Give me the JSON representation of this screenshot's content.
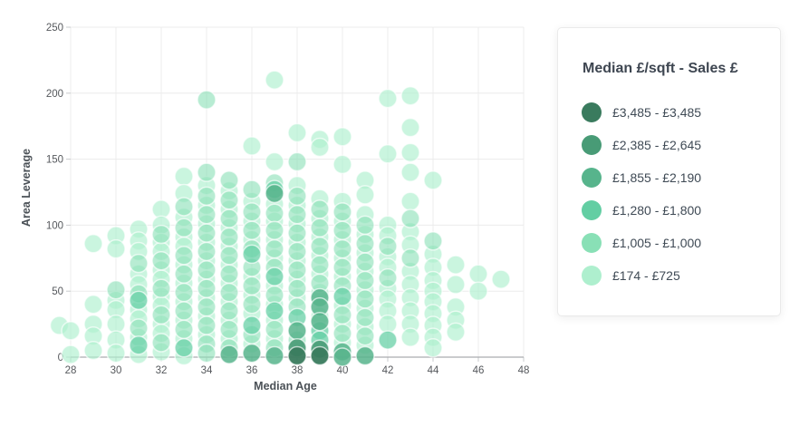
{
  "legend": {
    "title": "Median £/sqft - Sales £",
    "items": [
      {
        "label": "£3,485 - £3,485",
        "color": "#3A7B5E"
      },
      {
        "label": "£2,385 - £2,645",
        "color": "#489B76"
      },
      {
        "label": "£1,855 - £2,190",
        "color": "#57B48C"
      },
      {
        "label": "£1,280 - £1,800",
        "color": "#63CEA3"
      },
      {
        "label": "£1,005 - £1,000",
        "color": "#89E0B6"
      },
      {
        "label": "£174 - £725",
        "color": "#AEEFCE"
      }
    ]
  },
  "chart_data": {
    "type": "scatter",
    "title": "",
    "xlabel": "Median Age",
    "ylabel": "Area Leverage",
    "xlim": [
      28,
      48
    ],
    "ylim": [
      0,
      250
    ],
    "x_ticks": [
      28,
      30,
      32,
      34,
      36,
      38,
      40,
      42,
      44,
      46,
      48
    ],
    "y_ticks": [
      0,
      50,
      100,
      150,
      200,
      250
    ],
    "grid": true,
    "legend_position": "right",
    "legend_title": "Median £/sqft - Sales £",
    "colors": {
      "grid": "#ececec",
      "axis_line": "#aaacaf",
      "tick_mark": "#c9cbcd"
    },
    "bands": [
      {
        "label": "£3,485 - £3,485",
        "color": "#3A7B5E",
        "opacity": 0.95
      },
      {
        "label": "£2,385 - £2,645",
        "color": "#489B76",
        "opacity": 0.9
      },
      {
        "label": "£1,855 - £2,190",
        "color": "#57B48C",
        "opacity": 0.85
      },
      {
        "label": "£1,280 - £1,800",
        "color": "#63CEA3",
        "opacity": 0.72
      },
      {
        "label": "£1,005 - £1,000",
        "color": "#89E0B6",
        "opacity": 0.6
      },
      {
        "label": "£174 - £725",
        "color": "#AEEFCE",
        "opacity": 0.65
      }
    ],
    "point_radius": 10,
    "points": [
      [
        27.5,
        24,
        5
      ],
      [
        28,
        2,
        5
      ],
      [
        28,
        20,
        5
      ],
      [
        29,
        86,
        5
      ],
      [
        29,
        40,
        5
      ],
      [
        29,
        25,
        5
      ],
      [
        29,
        16,
        5
      ],
      [
        29,
        5,
        5
      ],
      [
        30,
        92,
        5
      ],
      [
        30,
        82,
        5
      ],
      [
        30,
        51,
        4
      ],
      [
        30,
        43,
        5
      ],
      [
        30,
        36,
        5
      ],
      [
        30,
        25,
        5
      ],
      [
        30,
        13,
        5
      ],
      [
        30,
        3,
        5
      ],
      [
        31,
        97,
        5
      ],
      [
        31,
        88,
        5
      ],
      [
        31,
        80,
        5
      ],
      [
        31,
        71,
        4
      ],
      [
        31,
        63,
        5
      ],
      [
        31,
        55,
        5
      ],
      [
        31,
        48,
        4
      ],
      [
        31,
        43,
        3
      ],
      [
        31,
        36,
        5
      ],
      [
        31,
        29,
        5
      ],
      [
        31,
        22,
        4
      ],
      [
        31,
        15,
        5
      ],
      [
        31,
        9,
        3
      ],
      [
        31,
        2,
        5
      ],
      [
        32,
        112,
        5
      ],
      [
        32,
        100,
        5
      ],
      [
        32,
        93,
        4
      ],
      [
        32,
        87,
        5
      ],
      [
        32,
        80,
        5
      ],
      [
        32,
        73,
        4
      ],
      [
        32,
        66,
        5
      ],
      [
        32,
        59,
        5
      ],
      [
        32,
        52,
        4
      ],
      [
        32,
        46,
        5
      ],
      [
        32,
        39,
        5
      ],
      [
        32,
        32,
        4
      ],
      [
        32,
        25,
        5
      ],
      [
        32,
        18,
        5
      ],
      [
        32,
        11,
        4
      ],
      [
        32,
        4,
        5
      ],
      [
        33,
        137,
        5
      ],
      [
        33,
        124,
        5
      ],
      [
        33,
        114,
        4
      ],
      [
        33,
        106,
        5
      ],
      [
        33,
        98,
        4
      ],
      [
        33,
        91,
        5
      ],
      [
        33,
        84,
        5
      ],
      [
        33,
        77,
        4
      ],
      [
        33,
        70,
        5
      ],
      [
        33,
        63,
        4
      ],
      [
        33,
        56,
        5
      ],
      [
        33,
        49,
        4
      ],
      [
        33,
        42,
        5
      ],
      [
        33,
        35,
        4
      ],
      [
        33,
        28,
        5
      ],
      [
        33,
        21,
        4
      ],
      [
        33,
        14,
        5
      ],
      [
        33,
        7,
        3
      ],
      [
        33,
        1,
        5
      ],
      [
        34,
        195,
        4
      ],
      [
        34,
        140,
        4
      ],
      [
        34,
        130,
        5
      ],
      [
        34,
        122,
        4
      ],
      [
        34,
        115,
        5
      ],
      [
        34,
        108,
        4
      ],
      [
        34,
        101,
        5
      ],
      [
        34,
        94,
        4
      ],
      [
        34,
        87,
        5
      ],
      [
        34,
        80,
        4
      ],
      [
        34,
        73,
        5
      ],
      [
        34,
        66,
        4
      ],
      [
        34,
        59,
        5
      ],
      [
        34,
        52,
        4
      ],
      [
        34,
        45,
        5
      ],
      [
        34,
        38,
        4
      ],
      [
        34,
        31,
        5
      ],
      [
        34,
        24,
        4
      ],
      [
        34,
        17,
        5
      ],
      [
        34,
        10,
        4
      ],
      [
        34,
        3,
        4
      ],
      [
        35,
        134,
        4
      ],
      [
        35,
        126,
        5
      ],
      [
        35,
        119,
        4
      ],
      [
        35,
        112,
        5
      ],
      [
        35,
        105,
        4
      ],
      [
        35,
        98,
        5
      ],
      [
        35,
        91,
        4
      ],
      [
        35,
        84,
        5
      ],
      [
        35,
        77,
        4
      ],
      [
        35,
        70,
        5
      ],
      [
        35,
        63,
        4
      ],
      [
        35,
        56,
        5
      ],
      [
        35,
        49,
        4
      ],
      [
        35,
        42,
        5
      ],
      [
        35,
        35,
        4
      ],
      [
        35,
        28,
        5
      ],
      [
        35,
        21,
        4
      ],
      [
        35,
        14,
        5
      ],
      [
        35,
        7,
        4
      ],
      [
        35,
        2,
        2
      ],
      [
        36,
        160,
        5
      ],
      [
        36,
        127,
        4
      ],
      [
        36,
        118,
        5
      ],
      [
        36,
        110,
        4
      ],
      [
        36,
        103,
        5
      ],
      [
        36,
        96,
        4
      ],
      [
        36,
        89,
        5
      ],
      [
        36,
        82,
        4
      ],
      [
        36,
        78,
        3
      ],
      [
        36,
        68,
        4
      ],
      [
        36,
        61,
        5
      ],
      [
        36,
        54,
        4
      ],
      [
        36,
        47,
        5
      ],
      [
        36,
        40,
        4
      ],
      [
        36,
        33,
        5
      ],
      [
        36,
        24,
        3
      ],
      [
        36,
        17,
        4
      ],
      [
        36,
        10,
        5
      ],
      [
        36,
        3,
        2
      ],
      [
        37,
        210,
        5
      ],
      [
        37,
        148,
        5
      ],
      [
        37,
        132,
        4
      ],
      [
        37,
        127,
        3
      ],
      [
        37,
        124,
        2
      ],
      [
        37,
        116,
        5
      ],
      [
        37,
        109,
        4
      ],
      [
        37,
        103,
        5
      ],
      [
        37,
        96,
        4
      ],
      [
        37,
        89,
        5
      ],
      [
        37,
        82,
        4
      ],
      [
        37,
        75,
        5
      ],
      [
        37,
        68,
        4
      ],
      [
        37,
        61,
        3
      ],
      [
        37,
        54,
        5
      ],
      [
        37,
        47,
        4
      ],
      [
        37,
        40,
        5
      ],
      [
        37,
        35,
        3
      ],
      [
        37,
        28,
        5
      ],
      [
        37,
        21,
        4
      ],
      [
        37,
        14,
        5
      ],
      [
        37,
        7,
        4
      ],
      [
        37,
        1,
        2
      ],
      [
        38,
        170,
        5
      ],
      [
        38,
        148,
        4
      ],
      [
        38,
        130,
        5
      ],
      [
        38,
        122,
        4
      ],
      [
        38,
        115,
        5
      ],
      [
        38,
        108,
        4
      ],
      [
        38,
        101,
        5
      ],
      [
        38,
        94,
        4
      ],
      [
        38,
        87,
        5
      ],
      [
        38,
        80,
        4
      ],
      [
        38,
        73,
        5
      ],
      [
        38,
        66,
        4
      ],
      [
        38,
        59,
        5
      ],
      [
        38,
        52,
        4
      ],
      [
        38,
        45,
        5
      ],
      [
        38,
        38,
        4
      ],
      [
        38,
        30,
        3
      ],
      [
        38,
        20,
        2
      ],
      [
        38,
        13,
        4
      ],
      [
        38,
        7,
        1
      ],
      [
        38,
        1,
        0
      ],
      [
        39,
        165,
        5
      ],
      [
        39,
        159,
        5
      ],
      [
        39,
        120,
        5
      ],
      [
        39,
        112,
        4
      ],
      [
        39,
        105,
        5
      ],
      [
        39,
        98,
        4
      ],
      [
        39,
        91,
        5
      ],
      [
        39,
        84,
        4
      ],
      [
        39,
        77,
        5
      ],
      [
        39,
        70,
        4
      ],
      [
        39,
        63,
        5
      ],
      [
        39,
        56,
        4
      ],
      [
        39,
        49,
        5
      ],
      [
        39,
        45,
        2
      ],
      [
        39,
        38,
        2
      ],
      [
        39,
        31,
        5
      ],
      [
        39,
        27,
        2
      ],
      [
        39,
        20,
        3
      ],
      [
        39,
        13,
        3
      ],
      [
        39,
        6,
        1
      ],
      [
        39,
        1,
        0
      ],
      [
        40,
        167,
        5
      ],
      [
        40,
        146,
        5
      ],
      [
        40,
        118,
        5
      ],
      [
        40,
        110,
        4
      ],
      [
        40,
        103,
        5
      ],
      [
        40,
        96,
        4
      ],
      [
        40,
        89,
        5
      ],
      [
        40,
        82,
        4
      ],
      [
        40,
        75,
        5
      ],
      [
        40,
        68,
        4
      ],
      [
        40,
        61,
        5
      ],
      [
        40,
        54,
        4
      ],
      [
        40,
        46,
        3
      ],
      [
        40,
        39,
        5
      ],
      [
        40,
        32,
        4
      ],
      [
        40,
        25,
        5
      ],
      [
        40,
        18,
        4
      ],
      [
        40,
        11,
        5
      ],
      [
        40,
        4,
        2
      ],
      [
        40,
        0,
        2
      ],
      [
        41,
        134,
        5
      ],
      [
        41,
        123,
        5
      ],
      [
        41,
        108,
        5
      ],
      [
        41,
        100,
        4
      ],
      [
        41,
        93,
        5
      ],
      [
        41,
        86,
        4
      ],
      [
        41,
        79,
        5
      ],
      [
        41,
        72,
        4
      ],
      [
        41,
        65,
        5
      ],
      [
        41,
        58,
        4
      ],
      [
        41,
        51,
        5
      ],
      [
        41,
        44,
        4
      ],
      [
        41,
        37,
        5
      ],
      [
        41,
        30,
        4
      ],
      [
        41,
        23,
        5
      ],
      [
        41,
        16,
        4
      ],
      [
        41,
        9,
        5
      ],
      [
        41,
        1,
        2
      ],
      [
        42,
        196,
        5
      ],
      [
        42,
        154,
        5
      ],
      [
        42,
        100,
        5
      ],
      [
        42,
        92,
        5
      ],
      [
        42,
        84,
        4
      ],
      [
        42,
        76,
        5
      ],
      [
        42,
        68,
        5
      ],
      [
        42,
        60,
        4
      ],
      [
        42,
        52,
        5
      ],
      [
        42,
        44,
        5
      ],
      [
        42,
        35,
        5
      ],
      [
        42,
        25,
        5
      ],
      [
        42,
        13,
        3
      ],
      [
        43,
        198,
        5
      ],
      [
        43,
        174,
        5
      ],
      [
        43,
        155,
        5
      ],
      [
        43,
        140,
        5
      ],
      [
        43,
        118,
        5
      ],
      [
        43,
        105,
        4
      ],
      [
        43,
        95,
        5
      ],
      [
        43,
        85,
        5
      ],
      [
        43,
        75,
        4
      ],
      [
        43,
        65,
        5
      ],
      [
        43,
        55,
        5
      ],
      [
        43,
        45,
        5
      ],
      [
        43,
        35,
        5
      ],
      [
        43,
        25,
        5
      ],
      [
        43,
        15,
        5
      ],
      [
        44,
        134,
        5
      ],
      [
        44,
        88,
        4
      ],
      [
        44,
        78,
        5
      ],
      [
        44,
        68,
        5
      ],
      [
        44,
        58,
        5
      ],
      [
        44,
        50,
        5
      ],
      [
        44,
        42,
        5
      ],
      [
        44,
        33,
        5
      ],
      [
        44,
        24,
        5
      ],
      [
        44,
        15,
        5
      ],
      [
        44,
        7,
        5
      ],
      [
        45,
        70,
        5
      ],
      [
        45,
        55,
        5
      ],
      [
        45,
        38,
        5
      ],
      [
        45,
        28,
        5
      ],
      [
        45,
        19,
        5
      ],
      [
        46,
        63,
        5
      ],
      [
        46,
        50,
        5
      ],
      [
        47,
        59,
        5
      ]
    ]
  }
}
